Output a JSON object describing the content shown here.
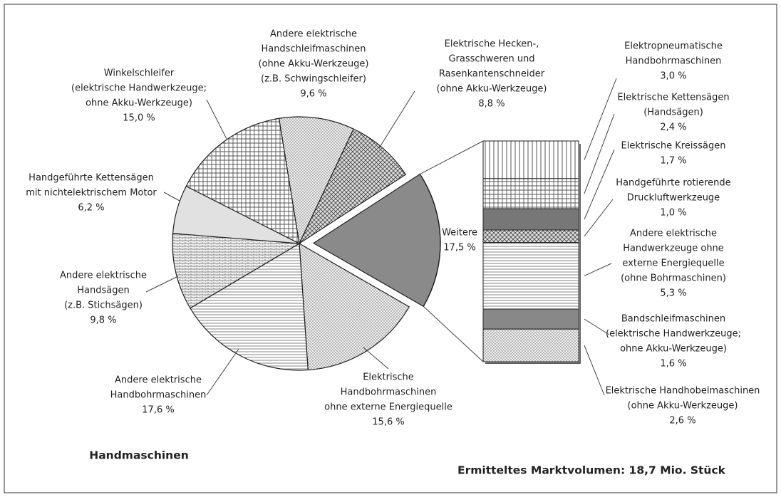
{
  "chart_data": {
    "type": "pie-of-bar",
    "title": "Handmaschinen",
    "note": "Ermitteltes Marktvolumen: 18,7 Mio. Stück",
    "pie": {
      "labels": [
        [
          "Weitere"
        ],
        [
          "Elektrische",
          "Handbohrmaschinen",
          "ohne externe Energiequelle"
        ],
        [
          "Andere elektrische",
          "Handbohrmaschinen"
        ],
        [
          "Andere elektrische",
          "Handsägen",
          "(z.B. Stichsägen)"
        ],
        [
          "Handgeführte Kettensägen",
          "mit nichtelektrischem Motor"
        ],
        [
          "Winkelschleifer",
          "(elektrische Handwerkzeuge;",
          "ohne Akku-Werkzeuge)"
        ],
        [
          "Andere elektrische",
          "Handschleifmaschinen",
          "(ohne Akku-Werkzeuge)",
          "(z.B. Schwingschleifer)"
        ],
        [
          "Elektrische Hecken-,",
          "Grasschweren und",
          "Rasenkantenschneider",
          "(ohne Akku-Werkzeuge)"
        ]
      ],
      "values": [
        17.5,
        15.6,
        17.6,
        9.8,
        6.2,
        15.0,
        9.6,
        8.8
      ],
      "value_labels": [
        "17,5 %",
        "15,6 %",
        "17,6 %",
        "9,8 %",
        "6,2 %",
        "15,0 %",
        "9,6 %",
        "8,8 %"
      ]
    },
    "bar": {
      "labels": [
        [
          "Elektropneumatische",
          "Handbohrmaschinen"
        ],
        [
          "Elektrische Kettensägen",
          "(Handsägen)"
        ],
        [
          "Elektrische Kreissägen"
        ],
        [
          "Handgeführte rotierende",
          "Druckluftwerkzeuge"
        ],
        [
          "Andere elektrische",
          "Handwerkzeuge ohne",
          "externe Energiequelle",
          "(ohne Bohrmaschinen)"
        ],
        [
          "Bandschleifmaschinen",
          "(elektrische Handwerkzeuge;",
          "ohne Akku-Werkzeuge)"
        ],
        [
          "Elektrische Handhobelmaschinen",
          "(ohne Akku-Werkzeuge)"
        ]
      ],
      "values": [
        3.0,
        2.4,
        1.7,
        1.0,
        5.3,
        1.6,
        2.6
      ],
      "value_labels": [
        "3,0 %",
        "2,4 %",
        "1,7 %",
        "1,0 %",
        "5,3 %",
        "1,6 %",
        "2,6 %"
      ]
    }
  }
}
